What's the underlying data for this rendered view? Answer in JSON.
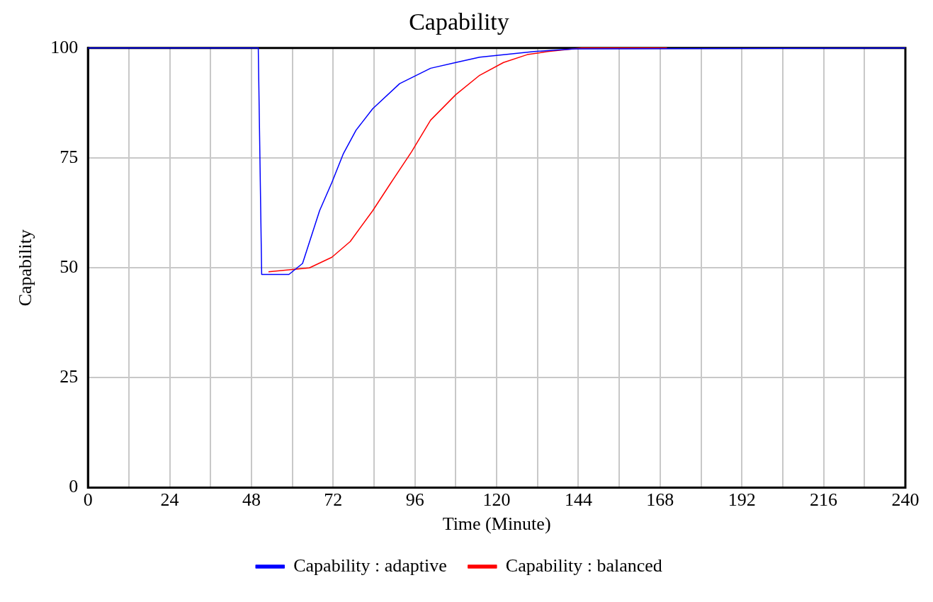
{
  "chart_data": {
    "type": "line",
    "title": "Capability",
    "xlabel": "Time (Minute)",
    "ylabel": "Capability",
    "xlim": [
      0,
      240
    ],
    "ylim": [
      0,
      100
    ],
    "xticks": [
      0,
      {
        "value": 12,
        "label": null
      },
      24,
      {
        "value": 36,
        "label": null
      },
      48,
      {
        "value": 60,
        "label": null
      },
      72,
      {
        "value": 84,
        "label": null
      },
      96,
      {
        "value": 108,
        "label": null
      },
      120,
      {
        "value": 132,
        "label": null
      },
      144,
      {
        "value": 156,
        "label": null
      },
      168,
      {
        "value": 180,
        "label": null
      },
      192,
      {
        "value": 204,
        "label": null
      },
      216,
      {
        "value": 228,
        "label": null
      },
      240
    ],
    "yticks": [
      0,
      25,
      50,
      75,
      100
    ],
    "grid": true,
    "legend": "bottom",
    "marker": "none",
    "line_style": "solid",
    "series": [
      {
        "name": "Capability : adaptive",
        "color": "#0000ff",
        "x": [
          0,
          50,
          51,
          59,
          63,
          68,
          71.6,
          75,
          78.7,
          83.6,
          91.5,
          100.6,
          108,
          115,
          131,
          143,
          240
        ],
        "values": [
          100,
          100,
          48.5,
          48.5,
          51,
          63,
          69.4,
          76,
          81.3,
          86.2,
          91.9,
          95.4,
          96.7,
          97.9,
          99.2,
          99.8,
          100
        ]
      },
      {
        "name": "Capability : balanced",
        "color": "#ff0000",
        "x": [
          53,
          59.5,
          65,
          71.6,
          77,
          83.6,
          89,
          95,
          100.6,
          108,
          115,
          122,
          129,
          135,
          145,
          170
        ],
        "values": [
          49.1,
          49.6,
          50,
          52.4,
          56,
          63,
          69.4,
          76.4,
          83.6,
          89.4,
          93.8,
          96.7,
          98.5,
          99.2,
          100,
          100
        ]
      }
    ]
  }
}
